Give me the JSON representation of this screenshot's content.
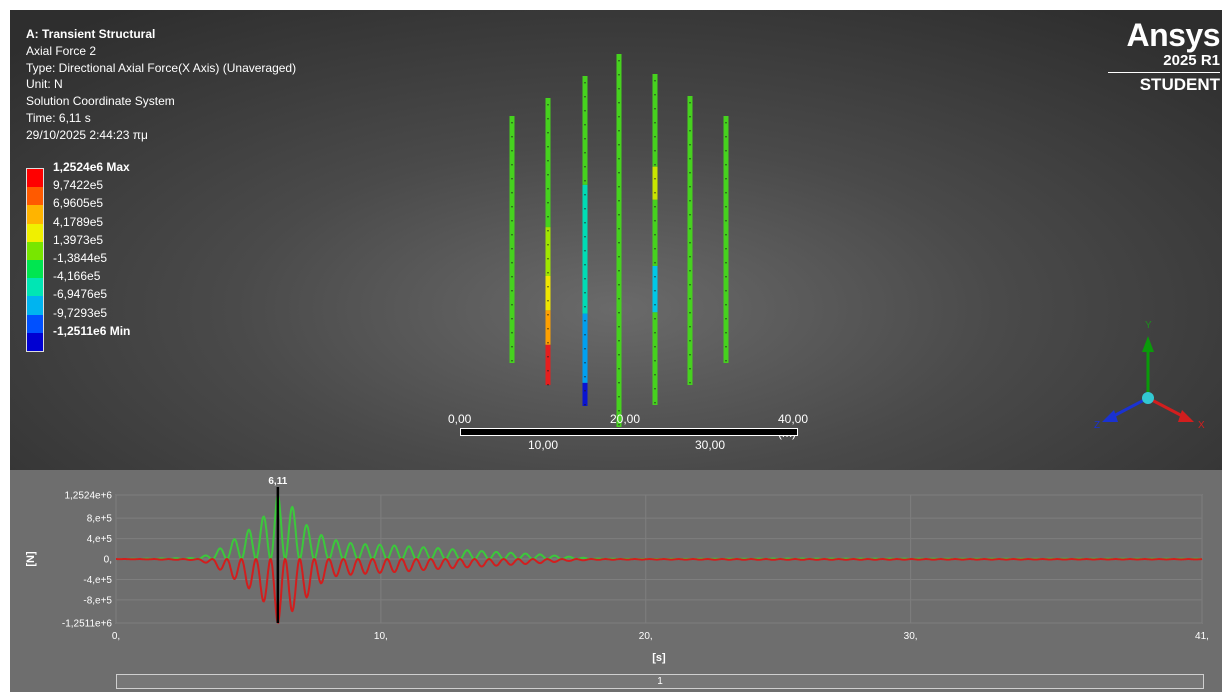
{
  "viewport": {
    "info": {
      "title": "A: Transient Structural",
      "result_name": "Axial Force 2",
      "type_line": "Type: Directional Axial Force(X Axis) (Unaveraged)",
      "unit_line": "Unit: N",
      "coord_line": "Solution Coordinate System",
      "time_line": "Time: 6,11 s",
      "date_line": "29/10/2025 2:44:23 πμ"
    },
    "legend": [
      {
        "label": "1,2524e6 Max",
        "color": "#ff0000",
        "bold": true
      },
      {
        "label": "9,7422e5",
        "color": "#ff5a00"
      },
      {
        "label": "6,9605e5",
        "color": "#ffb400"
      },
      {
        "label": "4,1789e5",
        "color": "#f0f000"
      },
      {
        "label": "1,3973e5",
        "color": "#78e600"
      },
      {
        "label": "-1,3844e5",
        "color": "#00e650"
      },
      {
        "label": "-4,166e5",
        "color": "#00e6b4"
      },
      {
        "label": "-6,9476e5",
        "color": "#00b4f0"
      },
      {
        "label": "-9,7293e5",
        "color": "#0050ff"
      },
      {
        "label": "-1,2511e6 Min",
        "color": "#0000d2",
        "bold": true
      }
    ],
    "logo": {
      "name": "Ansys",
      "version": "2025 R1",
      "edition": "STUDENT"
    },
    "scale": {
      "top_labels": [
        "0,00",
        "20,00",
        "40,00 (m)"
      ],
      "bottom_labels": [
        "10,00",
        "30,00"
      ]
    },
    "triad": {
      "x": "X",
      "y": "Y",
      "z": "Z"
    }
  },
  "chart_data": {
    "type": "line",
    "ylabel": "[N]",
    "xlabel": "[s]",
    "x_ticks": [
      "0,",
      "10,",
      "20,",
      "30,",
      "41,"
    ],
    "x_tick_values": [
      0,
      10,
      20,
      30,
      41
    ],
    "y_ticks": [
      "1,2524e+6",
      "8,e+5",
      "4,e+5",
      "0,",
      "-4,e+5",
      "-8,e+5",
      "-1,2511e+6"
    ],
    "y_tick_values": [
      1252400,
      800000,
      400000,
      0,
      -400000,
      -800000,
      -1251100
    ],
    "xlim": [
      0,
      41
    ],
    "ylim": [
      -1251100,
      1252400
    ],
    "cursor_time": 6.11,
    "cursor_label": "6,11",
    "series": [
      {
        "color": "#3cc83c",
        "x": [
          0,
          3,
          3.6,
          4.2,
          4.8,
          5.4,
          6.11,
          6.7,
          7.3,
          8,
          9,
          10,
          11,
          12,
          13,
          14,
          15,
          16,
          17,
          18,
          20,
          25,
          30,
          35,
          41
        ],
        "y": [
          0,
          20000,
          100000,
          300000,
          500000,
          700000,
          1252400,
          1000000,
          600000,
          400000,
          300000,
          280000,
          250000,
          220000,
          180000,
          150000,
          120000,
          90000,
          50000,
          10000,
          0,
          10000,
          8000,
          6000,
          5000
        ]
      },
      {
        "color": "#d21e1e",
        "x": [
          0,
          3,
          3.6,
          4.2,
          4.8,
          5.4,
          6.11,
          6.7,
          7.3,
          8,
          9,
          10,
          11,
          12,
          13,
          14,
          15,
          16,
          17,
          18,
          20,
          25,
          30,
          35,
          41
        ],
        "y": [
          0,
          -20000,
          -100000,
          -300000,
          -500000,
          -700000,
          -1251100,
          -1000000,
          -700000,
          -350000,
          -300000,
          -270000,
          -240000,
          -200000,
          -170000,
          -140000,
          -110000,
          -80000,
          -40000,
          -15000,
          -10000,
          -15000,
          -12000,
          -10000,
          -8000
        ]
      }
    ],
    "step_label": "1"
  }
}
